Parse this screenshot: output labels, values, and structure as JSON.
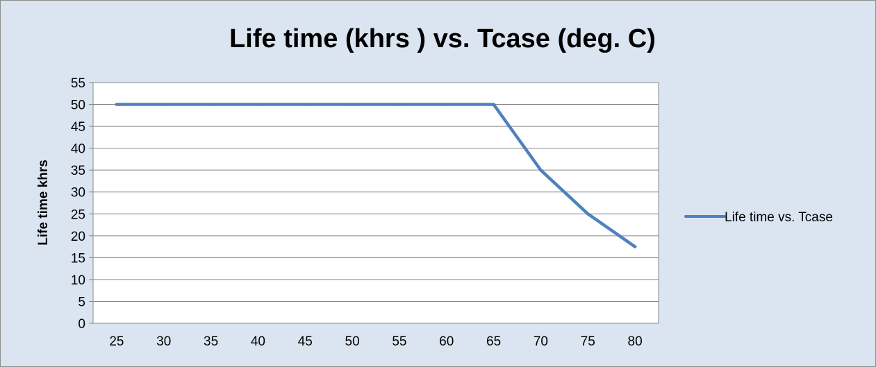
{
  "chart_data": {
    "type": "line",
    "title": "Life time (khrs ) vs. Tcase (deg. C)",
    "xlabel": "",
    "ylabel": "Life time khrs",
    "categories": [
      "25",
      "30",
      "35",
      "40",
      "45",
      "50",
      "55",
      "60",
      "65",
      "70",
      "75",
      "80"
    ],
    "series": [
      {
        "name": "Life time vs. Tcase",
        "color": "#4f81bd",
        "values": [
          50,
          50,
          50,
          50,
          50,
          50,
          50,
          50,
          50,
          35,
          25,
          17.5
        ]
      }
    ],
    "ylim": [
      0,
      55
    ],
    "yticks": [
      "0",
      "5",
      "10",
      "15",
      "20",
      "25",
      "30",
      "35",
      "40",
      "45",
      "50",
      "55"
    ],
    "grid": true,
    "legend_position": "right",
    "colors": {
      "background": "#dbe5f1",
      "plot_area": "#ffffff",
      "gridline": "#868686"
    }
  }
}
